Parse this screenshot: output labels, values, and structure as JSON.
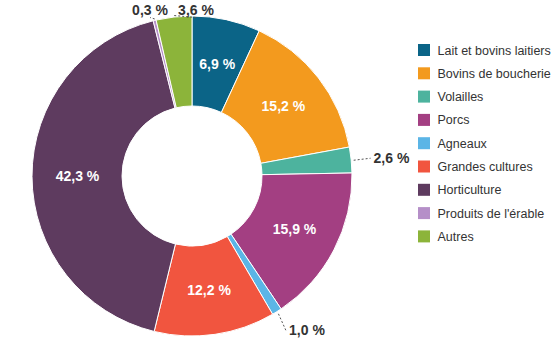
{
  "chart_data": {
    "type": "pie",
    "categories": [
      "Lait et bovins laitiers",
      "Bovins de boucherie",
      "Volailles",
      "Porcs",
      "Agneaux",
      "Grandes cultures",
      "Horticulture",
      "Produits de l'érable",
      "Autres"
    ],
    "values": [
      6.9,
      15.2,
      2.6,
      15.9,
      1.0,
      12.2,
      42.3,
      0.3,
      3.6
    ],
    "value_labels": [
      "6,9 %",
      "15,2 %",
      "2,6 %",
      "15,9 %",
      "1,0 %",
      "12,2 %",
      "42,3 %",
      "0,3 %",
      "3,6 %"
    ],
    "colors": [
      "#0b6487",
      "#f39a1e",
      "#4db39e",
      "#a33f82",
      "#5bb5e6",
      "#f1553f",
      "#5e3b5f",
      "#b58fc8",
      "#8cb43a"
    ],
    "data_labels": true,
    "legend": "right"
  }
}
